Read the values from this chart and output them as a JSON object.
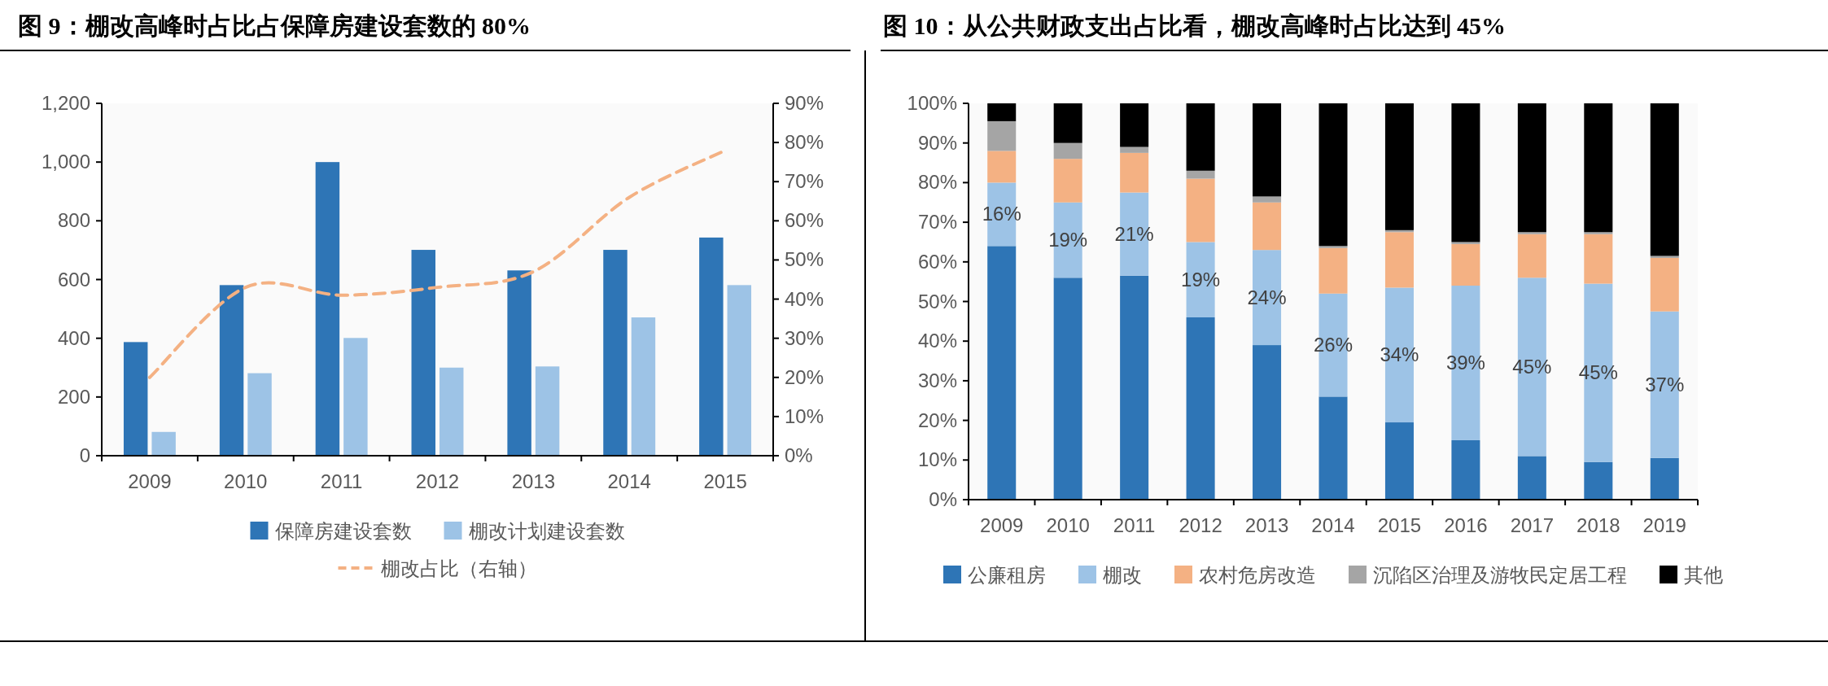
{
  "chart_data": [
    {
      "type": "bar",
      "title": "图 9：棚改高峰时占比占保障房建设套数的 80%",
      "categories": [
        "2009",
        "2010",
        "2011",
        "2012",
        "2013",
        "2014",
        "2015"
      ],
      "series": [
        {
          "name": "保障房建设套数",
          "color": "#2e75b6",
          "values": [
            387,
            581,
            1000,
            701,
            631,
            701,
            743
          ]
        },
        {
          "name": "棚改计划建设套数",
          "color": "#9dc3e6",
          "values": [
            81,
            281,
            401,
            300,
            304,
            471,
            581
          ]
        },
        {
          "name": "棚改占比（右轴）",
          "type": "line",
          "axis": "y2",
          "color": "#f4b183",
          "line_style": "dashed",
          "values": [
            20,
            43,
            41,
            43,
            47,
            66,
            78
          ]
        }
      ],
      "ylim": [
        0,
        1200
      ],
      "yticks": [
        0,
        200,
        400,
        600,
        800,
        {
          "value": 1000,
          "label": "1,000"
        },
        {
          "value": 1200,
          "label": "1,200"
        }
      ],
      "y2lim": [
        0,
        90
      ],
      "y2ticks": [
        {
          "value": 0,
          "label": "0%"
        },
        {
          "value": 10,
          "label": "10%"
        },
        {
          "value": 20,
          "label": "20%"
        },
        {
          "value": 30,
          "label": "30%"
        },
        {
          "value": 40,
          "label": "40%"
        },
        {
          "value": 50,
          "label": "50%"
        },
        {
          "value": 60,
          "label": "60%"
        },
        {
          "value": 70,
          "label": "70%"
        },
        {
          "value": 80,
          "label": "80%"
        },
        {
          "value": 90,
          "label": "90%"
        }
      ],
      "legend": "bottom"
    },
    {
      "type": "bar",
      "title": "图 10：从公共财政支出占比看，棚改高峰时占比达到 45%",
      "stacked": true,
      "categories": [
        "2009",
        "2010",
        "2011",
        "2012",
        "2013",
        "2014",
        "2015",
        "2016",
        "2017",
        "2018",
        "2019"
      ],
      "series": [
        {
          "name": "公廉租房",
          "color": "#2e75b6",
          "values": [
            64,
            56,
            56.5,
            46,
            39,
            26,
            19.5,
            15,
            11,
            9.5,
            10.5
          ]
        },
        {
          "name": "棚改",
          "color": "#9dc3e6",
          "values": [
            16,
            19,
            21,
            19,
            24,
            26,
            34,
            39,
            45,
            45,
            37
          ],
          "value_labels": [
            "16%",
            "19%",
            "21%",
            "19%",
            "24%",
            "26%",
            "34%",
            "39%",
            "45%",
            "45%",
            "37%"
          ]
        },
        {
          "name": "农村危房改造",
          "color": "#f4b183",
          "values": [
            8,
            11,
            10,
            16,
            12,
            11.5,
            14,
            10.5,
            11,
            12.5,
            13.5
          ]
        },
        {
          "name": "沉陷区治理及游牧民定居工程",
          "color": "#a5a5a5",
          "values": [
            7.5,
            4,
            1.5,
            2,
            1.5,
            0.5,
            0.5,
            0.5,
            0.5,
            0.5,
            0.5
          ]
        },
        {
          "name": "其他",
          "color": "#000000",
          "values": [
            4.5,
            10,
            11,
            17,
            23.5,
            36,
            32,
            35,
            32.5,
            32.5,
            38.5
          ]
        }
      ],
      "ylim": [
        0,
        100
      ],
      "yticks": [
        {
          "value": 0,
          "label": "0%"
        },
        {
          "value": 10,
          "label": "10%"
        },
        {
          "value": 20,
          "label": "20%"
        },
        {
          "value": 30,
          "label": "30%"
        },
        {
          "value": 40,
          "label": "40%"
        },
        {
          "value": 50,
          "label": "50%"
        },
        {
          "value": 60,
          "label": "60%"
        },
        {
          "value": 70,
          "label": "70%"
        },
        {
          "value": 80,
          "label": "80%"
        },
        {
          "value": 90,
          "label": "90%"
        },
        {
          "value": 100,
          "label": "100%"
        }
      ],
      "legend": "bottom"
    }
  ]
}
